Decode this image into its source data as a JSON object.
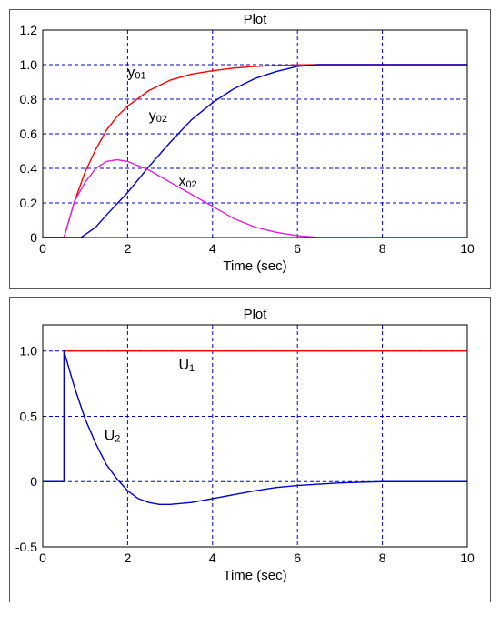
{
  "colors": {
    "background": "#ffffff",
    "frame": "#000000",
    "grid": "#0000cc",
    "red_series": "#ff0000",
    "blue_series": "#0000cc",
    "magenta_series": "#e020e0"
  },
  "chart_data": [
    {
      "type": "line",
      "title": "Plot",
      "xlabel": "Time (sec)",
      "ylabel": "",
      "xlim": [
        0,
        10
      ],
      "ylim": [
        0,
        1.2
      ],
      "xticks": [
        0,
        2,
        4,
        6,
        8,
        10
      ],
      "xtick_labels": [
        "0",
        "2",
        "4",
        "6",
        "8",
        "10"
      ],
      "yticks": [
        0,
        0.2,
        0.4,
        0.6,
        0.8,
        1.0,
        1.2
      ],
      "ytick_labels": [
        "0",
        "0.2",
        "0.4",
        "0.6",
        "0.8",
        "1.0",
        "1.2"
      ],
      "grid": true,
      "series": [
        {
          "name": "y01",
          "color": "#ff0000",
          "x": [
            0,
            0.5,
            0.75,
            1.0,
            1.25,
            1.5,
            1.75,
            2.0,
            2.5,
            3.0,
            3.5,
            4.0,
            4.5,
            5.0,
            5.5,
            6.0,
            6.5,
            7.0,
            8.0,
            10.0
          ],
          "y": [
            0,
            0,
            0.21,
            0.38,
            0.51,
            0.62,
            0.7,
            0.76,
            0.85,
            0.91,
            0.945,
            0.965,
            0.98,
            0.99,
            0.995,
            0.998,
            1.0,
            1.0,
            1.0,
            1.0
          ]
        },
        {
          "name": "y02",
          "color": "#0000cc",
          "x": [
            0,
            0.5,
            0.9,
            1.25,
            1.5,
            2.0,
            2.5,
            3.0,
            3.5,
            4.0,
            4.5,
            5.0,
            5.5,
            6.0,
            6.5,
            7.0,
            8.0,
            10.0
          ],
          "y": [
            0,
            0,
            0,
            0.06,
            0.13,
            0.26,
            0.41,
            0.55,
            0.68,
            0.78,
            0.86,
            0.92,
            0.96,
            0.99,
            1.0,
            1.0,
            1.0,
            1.0
          ]
        },
        {
          "name": "x02",
          "color": "#e020e0",
          "x": [
            0,
            0.5,
            0.75,
            1.0,
            1.25,
            1.5,
            1.75,
            2.0,
            2.5,
            3.0,
            3.5,
            4.0,
            4.5,
            5.0,
            5.5,
            6.0,
            6.5,
            7.0,
            8.0,
            10.0
          ],
          "y": [
            0,
            0,
            0.21,
            0.32,
            0.4,
            0.44,
            0.45,
            0.44,
            0.39,
            0.32,
            0.25,
            0.18,
            0.11,
            0.06,
            0.03,
            0.01,
            0.0,
            0.0,
            0.0,
            0.0
          ]
        }
      ],
      "annotations": [
        {
          "main": "y",
          "sub": "01",
          "x": 2.0,
          "y": 0.93
        },
        {
          "main": "y",
          "sub": "02",
          "x": 2.5,
          "y": 0.68
        },
        {
          "main": "x",
          "sub": "02",
          "x": 3.2,
          "y": 0.3
        }
      ]
    },
    {
      "type": "line",
      "title": "Plot",
      "xlabel": "Time (sec)",
      "ylabel": "",
      "xlim": [
        0,
        10
      ],
      "ylim": [
        -0.5,
        1.2
      ],
      "xticks": [
        0,
        2,
        4,
        6,
        8,
        10
      ],
      "xtick_labels": [
        "0",
        "2",
        "4",
        "6",
        "8",
        "10"
      ],
      "yticks": [
        -0.5,
        0,
        0.5,
        1.0
      ],
      "ytick_labels": [
        "-0.5",
        "0",
        "0.5",
        "1.0"
      ],
      "grid": true,
      "series": [
        {
          "name": "U1",
          "color": "#ff0000",
          "x": [
            0.5,
            10.0
          ],
          "y": [
            1.0,
            1.0
          ]
        },
        {
          "name": "U2",
          "color": "#0000cc",
          "x": [
            0,
            0.5,
            0.5,
            0.75,
            1.0,
            1.25,
            1.5,
            1.75,
            2.0,
            2.25,
            2.5,
            2.75,
            3.0,
            3.5,
            4.0,
            4.5,
            5.0,
            5.5,
            6.0,
            6.5,
            7.0,
            7.5,
            8.0,
            9.0,
            10.0
          ],
          "y": [
            0,
            0,
            1.0,
            0.72,
            0.48,
            0.29,
            0.13,
            0.02,
            -0.07,
            -0.13,
            -0.16,
            -0.175,
            -0.175,
            -0.16,
            -0.13,
            -0.1,
            -0.07,
            -0.045,
            -0.03,
            -0.02,
            -0.01,
            -0.005,
            0.0,
            0.0,
            0.0
          ]
        }
      ],
      "annotations": [
        {
          "main": "U",
          "sub": "1",
          "x": 3.2,
          "y": 0.86
        },
        {
          "main": "U",
          "sub": "2",
          "x": 1.45,
          "y": 0.32
        }
      ]
    }
  ]
}
